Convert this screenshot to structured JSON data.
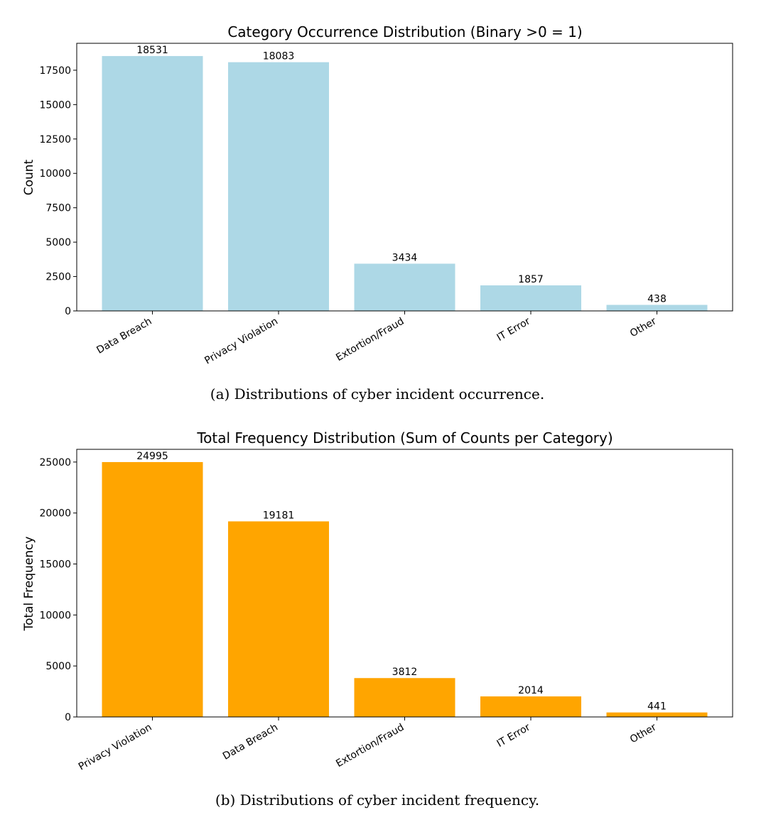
{
  "chart_data": [
    {
      "type": "bar",
      "title": "Category Occurrence Distribution (Binary >0 = 1)",
      "xlabel": "",
      "ylabel": "Count",
      "categories": [
        "Data Breach",
        "Privacy Violation",
        "Extortion/Fraud",
        "IT Error",
        "Other"
      ],
      "values": [
        18531,
        18083,
        3434,
        1857,
        438
      ],
      "data_labels": [
        "18531",
        "18083",
        "3434",
        "1857",
        "438"
      ],
      "yticks": [
        0,
        2500,
        5000,
        7500,
        10000,
        12500,
        15000,
        17500
      ],
      "ytick_labels": [
        "0",
        "2500",
        "5000",
        "7500",
        "10000",
        "12500",
        "15000",
        "17500"
      ],
      "ylim": [
        0,
        19457
      ],
      "bar_color": "#add8e6",
      "grid": false,
      "caption": "(a) Distributions of cyber incident occurrence."
    },
    {
      "type": "bar",
      "title": "Total Frequency Distribution (Sum of Counts per Category)",
      "xlabel": "",
      "ylabel": "Total Frequency",
      "categories": [
        "Privacy Violation",
        "Data Breach",
        "Extortion/Fraud",
        "IT Error",
        "Other"
      ],
      "values": [
        24995,
        19181,
        3812,
        2014,
        441
      ],
      "data_labels": [
        "24995",
        "19181",
        "3812",
        "2014",
        "441"
      ],
      "yticks": [
        0,
        5000,
        10000,
        15000,
        20000,
        25000
      ],
      "ytick_labels": [
        "0",
        "5000",
        "10000",
        "15000",
        "20000",
        "25000"
      ],
      "ylim": [
        0,
        26245
      ],
      "bar_color": "#ffa500",
      "grid": false,
      "caption": "(b) Distributions of cyber incident frequency."
    }
  ]
}
